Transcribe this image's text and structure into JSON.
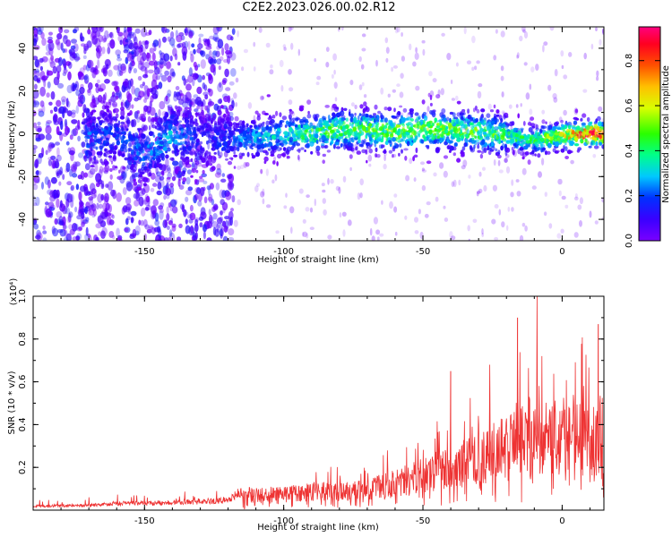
{
  "title": "C2E2.2023.026.00.02.R12",
  "colorbar": {
    "label": "Normalized spectral amplitude",
    "ticks": [
      "0.0",
      "0.2",
      "0.4",
      "0.6",
      "0.8"
    ]
  },
  "chart_data": [
    {
      "type": "heatmap",
      "xlabel": "Height of straight line (km)",
      "ylabel": "Frequency (Hz)",
      "xlim": [
        -190,
        15
      ],
      "ylim": [
        -50,
        50
      ],
      "xticks": [
        -150,
        -100,
        -50,
        0
      ],
      "xtick_labels": [
        "-150",
        "-100",
        "-50",
        "0"
      ],
      "yticks": [
        -40,
        -20,
        0,
        20,
        40
      ],
      "ytick_labels": [
        "-40",
        "-20",
        "0",
        "20",
        "40"
      ],
      "colormap": "rainbow (purple 0.0 to red 0.9)",
      "clim": [
        0.0,
        0.95
      ],
      "ridge": {
        "x": [
          -170,
          -160,
          -150,
          -140,
          -130,
          -120,
          -110,
          -100,
          -90,
          -80,
          -70,
          -60,
          -50,
          -40,
          -30,
          -20,
          -10,
          0,
          10,
          14
        ],
        "y": [
          -3,
          0,
          -10,
          0,
          -2,
          -3,
          -2,
          0,
          0,
          2,
          2,
          1,
          2,
          2,
          1,
          -1,
          -3,
          -1,
          0,
          0
        ],
        "peak_amplitude": [
          0.25,
          0.2,
          0.25,
          0.3,
          0.15,
          0.2,
          0.3,
          0.35,
          0.45,
          0.5,
          0.5,
          0.55,
          0.55,
          0.5,
          0.5,
          0.45,
          0.45,
          0.6,
          0.9,
          0.8
        ]
      }
    },
    {
      "type": "line",
      "xlabel": "Height of straight line (km)",
      "ylabel": "SNR (10 * v/v)",
      "y_multiplier": "(x10⁴)",
      "xlim": [
        -190,
        15
      ],
      "ylim": [
        0,
        1.0
      ],
      "xticks": [
        -150,
        -100,
        -50,
        0
      ],
      "xtick_labels": [
        "-150",
        "-100",
        "-50",
        "0"
      ],
      "yticks": [
        0.2,
        0.4,
        0.6,
        0.8,
        1.0
      ],
      "ytick_labels": [
        "0.2",
        "0.4",
        "0.6",
        "0.8",
        "1.0"
      ],
      "color": "#ee3333",
      "envelope": {
        "x": [
          -190,
          -170,
          -160,
          -150,
          -140,
          -120,
          -115,
          -110,
          -100,
          -90,
          -80,
          -70,
          -60,
          -50,
          -40,
          -30,
          -20,
          -15,
          -10,
          -5,
          0,
          5,
          10,
          13,
          15
        ],
        "y": [
          0.02,
          0.025,
          0.035,
          0.035,
          0.04,
          0.05,
          0.1,
          0.1,
          0.1,
          0.12,
          0.12,
          0.13,
          0.18,
          0.22,
          0.28,
          0.33,
          0.42,
          0.5,
          0.48,
          0.48,
          0.5,
          0.5,
          0.45,
          0.45,
          0.3
        ]
      },
      "peaks": [
        {
          "x": -40,
          "y": 0.65
        },
        {
          "x": -26,
          "y": 0.68
        },
        {
          "x": -16,
          "y": 0.9
        },
        {
          "x": -9,
          "y": 1.0
        },
        {
          "x": 13,
          "y": 0.87
        }
      ]
    }
  ]
}
